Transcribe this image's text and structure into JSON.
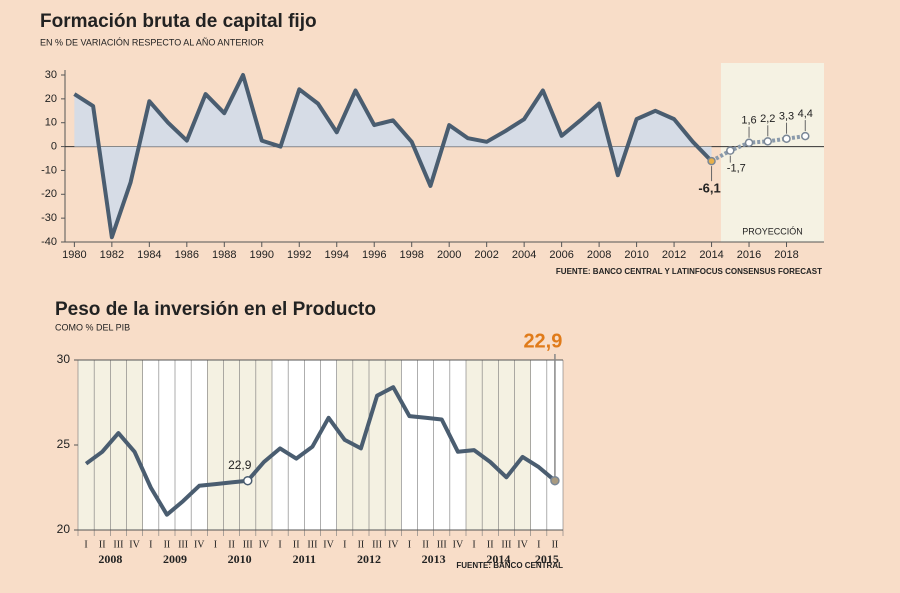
{
  "chart_data": [
    {
      "type": "area",
      "title": "Formación bruta de capital fijo",
      "subtitle": "EN % DE VARIACIÓN RESPECTO AL AÑO ANTERIOR",
      "source": "FUENTE: BANCO CENTRAL Y LATINFOCUS CONSENSUS FORECAST",
      "x": [
        1980,
        1981,
        1982,
        1983,
        1984,
        1985,
        1986,
        1987,
        1988,
        1989,
        1990,
        1991,
        1992,
        1993,
        1994,
        1995,
        1996,
        1997,
        1998,
        1999,
        2000,
        2001,
        2002,
        2003,
        2004,
        2005,
        2006,
        2007,
        2008,
        2009,
        2010,
        2011,
        2012,
        2013,
        2014,
        2015,
        2016,
        2017,
        2018,
        2019
      ],
      "values": [
        22,
        17,
        -38,
        -15,
        19,
        10,
        2.5,
        22,
        14,
        30,
        2.5,
        0,
        24,
        18,
        6,
        23.5,
        9,
        11,
        2,
        -16.5,
        9,
        3.5,
        2,
        6.5,
        11.5,
        23.5,
        4.5,
        11,
        18,
        -12,
        11.5,
        15,
        11.5,
        2,
        -6.1,
        -1.7,
        1.6,
        2.2,
        3.3,
        4.4
      ],
      "value_labels": [
        null,
        null,
        null,
        null,
        null,
        null,
        null,
        null,
        null,
        null,
        null,
        null,
        null,
        null,
        null,
        null,
        null,
        null,
        null,
        null,
        null,
        null,
        null,
        null,
        null,
        null,
        null,
        null,
        null,
        null,
        null,
        null,
        null,
        null,
        "-6,1",
        "-1,7",
        "1,6",
        "2,2",
        "3,3",
        "4,4"
      ],
      "projection": {
        "label": "PROYECCIÓN",
        "from": 2015
      },
      "color": "#4a5d70",
      "area_color": "#d6dce6",
      "highlight_color": "#e8b04a",
      "xlim": [
        1979.5,
        2020
      ],
      "xticks": [
        1980,
        1982,
        1984,
        1986,
        1988,
        1990,
        1992,
        1994,
        1996,
        1998,
        2000,
        2002,
        2004,
        2006,
        2008,
        2010,
        2012,
        2014,
        2016,
        2018
      ],
      "ylim": [
        -40,
        30
      ],
      "yticks": [
        -40,
        -30,
        -20,
        -10,
        0,
        10,
        20,
        30
      ],
      "grid": false
    },
    {
      "type": "line",
      "title": "Peso de la inversión en el Producto",
      "subtitle": "COMO % DEL PIB",
      "source": "FUENTE: BANCO CENTRAL",
      "categories": [
        "I",
        "II",
        "III",
        "IV",
        "I",
        "II",
        "III",
        "IV",
        "I",
        "II",
        "III",
        "IV",
        "I",
        "II",
        "III",
        "IV",
        "I",
        "II",
        "III",
        "IV",
        "I",
        "II",
        "III",
        "IV",
        "I",
        "II",
        "III",
        "IV",
        "I",
        "II"
      ],
      "years": [
        "2008",
        "2009",
        "2010",
        "2011",
        "2012",
        "2013",
        "2014",
        "2015"
      ],
      "values": [
        23.9,
        24.6,
        25.7,
        24.6,
        22.5,
        20.9,
        21.7,
        22.6,
        22.7,
        22.8,
        22.9,
        24.0,
        24.8,
        24.2,
        24.9,
        26.6,
        25.3,
        24.8,
        27.9,
        28.4,
        26.7,
        26.6,
        26.5,
        24.6,
        24.7,
        24.0,
        23.1,
        24.3,
        23.7,
        22.9
      ],
      "value_labels": [
        null,
        null,
        null,
        null,
        null,
        null,
        null,
        null,
        null,
        null,
        "22,9",
        null,
        null,
        null,
        null,
        null,
        null,
        null,
        null,
        null,
        null,
        null,
        null,
        null,
        null,
        null,
        null,
        null,
        null,
        "22,9"
      ],
      "color": "#4a5d70",
      "highlight_color": "#e07b1a",
      "ylim": [
        20,
        30
      ],
      "yticks": [
        20,
        25,
        30
      ],
      "grid": false
    }
  ]
}
